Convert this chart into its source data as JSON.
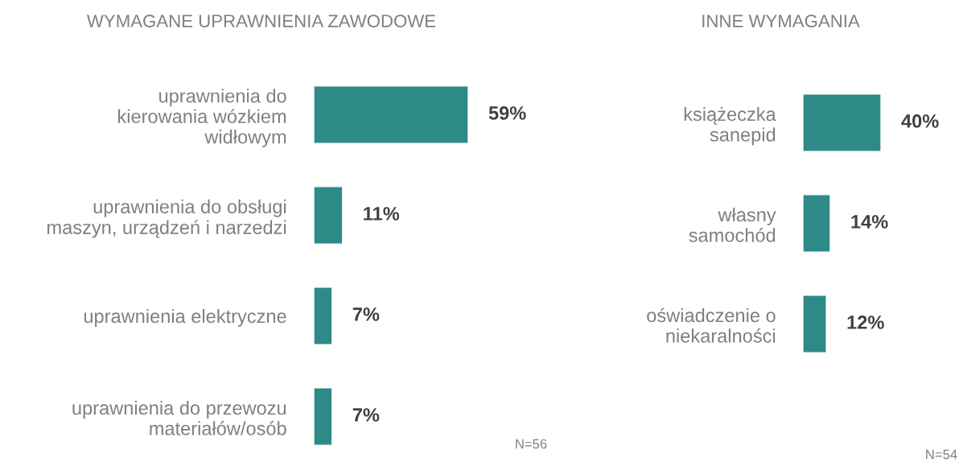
{
  "chart_data": [
    {
      "type": "bar",
      "orientation": "horizontal",
      "title": "WYMAGANE UPRAWNIENIA ZAWODOWE",
      "categories": [
        "uprawnienia do\nkierowania wózkiem\nwidłowym",
        "uprawnienia do obsługi\nmaszyn, urządzeń i narzedzi",
        "uprawnienia elektryczne",
        "uprawnienia do przewozu\nmateriałów/osób"
      ],
      "values": [
        59,
        11,
        7,
        7
      ],
      "value_labels": [
        "59%",
        "11%",
        "7%",
        "7%"
      ],
      "color": "#2e8a87",
      "annotations": [
        "N=56"
      ]
    },
    {
      "type": "bar",
      "orientation": "horizontal",
      "title": "INNE WYMAGANIA",
      "categories": [
        "książeczka\nsanepid",
        "własny\nsamochód",
        "oświadczenie o\nniekaralności"
      ],
      "values": [
        40,
        14,
        12
      ],
      "value_labels": [
        "40%",
        "14%",
        "12%"
      ],
      "color": "#2e8a87",
      "annotations": [
        "N=54"
      ]
    }
  ]
}
